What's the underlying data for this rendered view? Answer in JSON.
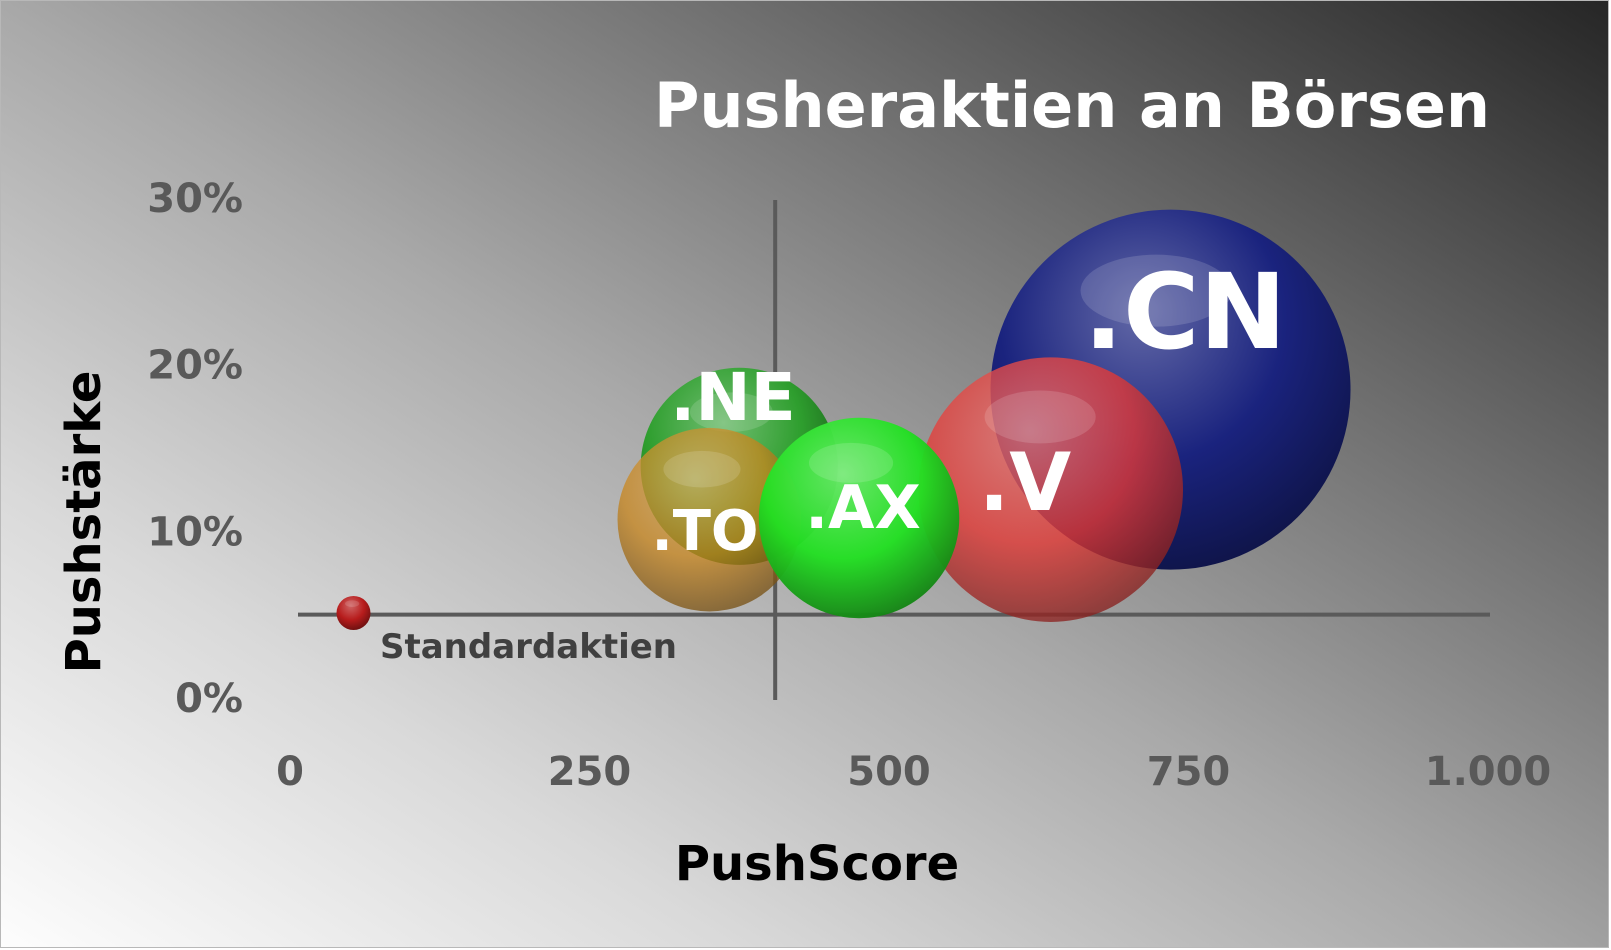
{
  "chart_data": {
    "type": "bubble",
    "title": "Pusheraktien an Börsen",
    "xlabel": "PushScore",
    "ylabel": "Pushstärke",
    "xlim": [
      0,
      1000
    ],
    "ylim": [
      0,
      0.3
    ],
    "x_ticks": [
      0,
      250,
      500,
      750,
      1000
    ],
    "x_tick_labels": [
      "0",
      "250",
      "500",
      "750",
      "1.000"
    ],
    "y_ticks": [
      0,
      0.1,
      0.2,
      0.3
    ],
    "y_tick_labels": [
      "0%",
      "10%",
      "20%",
      "30%"
    ],
    "grid": false,
    "legend": "none",
    "reference_lines": {
      "x": 405,
      "y": 0.05
    },
    "series": [
      {
        "name": ".CN",
        "x": 735,
        "y": 0.185,
        "size": 1.0,
        "color": "#1a237e"
      },
      {
        "name": ".V",
        "x": 635,
        "y": 0.125,
        "size": 0.54,
        "color": "#e53935"
      },
      {
        "name": ".NE",
        "x": 375,
        "y": 0.139,
        "size": 0.3,
        "color": "#2e9e2e"
      },
      {
        "name": ".AX",
        "x": 475,
        "y": 0.108,
        "size": 0.31,
        "color": "#22e022"
      },
      {
        "name": ".TO",
        "x": 350,
        "y": 0.107,
        "size": 0.26,
        "color": "#c8861e"
      },
      {
        "name": "Standardaktien",
        "x": 53,
        "y": 0.051,
        "size": 0.004,
        "color": "#b71c1c"
      }
    ]
  }
}
